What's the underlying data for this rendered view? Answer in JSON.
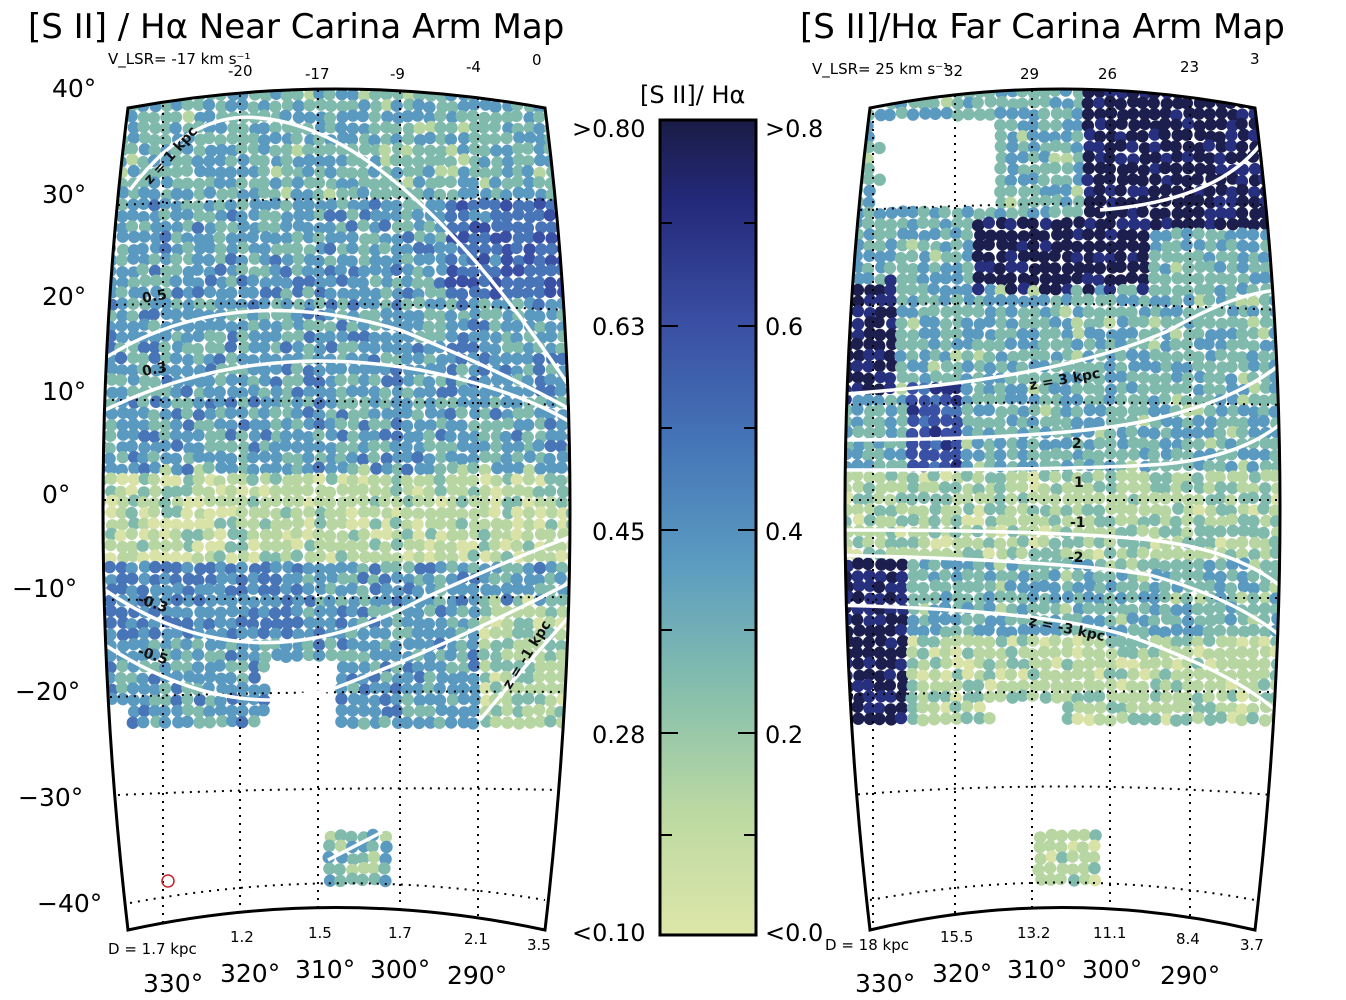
{
  "chart_data": [
    {
      "type": "heatmap",
      "title": "[S II] / Hα Near Carina Arm Map",
      "projection": "all-sky map, Galactic coordinates",
      "longitude_ticks": [
        "330°",
        "320°",
        "310°",
        "300°",
        "290°"
      ],
      "latitude_ticks": [
        "40°",
        "30°",
        "20°",
        "10°",
        "0°",
        "−10°",
        "−20°",
        "−30°",
        "−40°"
      ],
      "velocity_ticks": [
        "V_LSR= -17 km s⁻¹",
        "-20",
        "-17",
        "-9",
        "-4",
        "0"
      ],
      "distance_ticks": [
        "D = 1.7 kpc",
        "1.2",
        "1.5",
        "1.7",
        "2.1",
        "3.5"
      ],
      "height_contours": [
        "z = 1 kpc",
        "0.5",
        "0.3",
        "-0.3",
        "-0.5",
        "z = -1 kpc"
      ],
      "value_range": [
        0.1,
        0.8
      ],
      "coverage": "latitude −23° to +40°, longitude 330° to 283°; small patch near b = −37° to −40°, l = 305°–310°"
    },
    {
      "type": "heatmap",
      "title": "[S II]/Hα Far Carina Arm Map",
      "projection": "all-sky map, Galactic coordinates",
      "longitude_ticks": [
        "330°",
        "320°",
        "310°",
        "300°",
        "290°"
      ],
      "velocity_ticks": [
        "V_LSR= 25 km s⁻¹",
        "32",
        "29",
        "26",
        "23",
        "3"
      ],
      "distance_ticks": [
        "D = 18 kpc",
        "15.5",
        "13.2",
        "11.1",
        "8.4",
        "3.7"
      ],
      "height_contours": [
        "z = 3 kpc",
        "2",
        "1",
        "-1",
        "-2",
        "z = -3 kpc"
      ],
      "value_range": [
        0.0,
        0.8
      ],
      "coverage": "latitude −23° to +40°, longitude 330° to 283°; small patch near b = −37° to −40°, l = 305°–310°"
    }
  ],
  "colorbar": {
    "label": "[S II]/ Hα",
    "left_ticks": [
      ">0.80",
      "0.63",
      "0.45",
      "0.28",
      "<0.10"
    ],
    "right_ticks": [
      ">0.8",
      "0.6",
      "0.4",
      "0.2",
      "<0.0"
    ],
    "colors": [
      "#d9e3a8",
      "#b7d6a2",
      "#7fbaad",
      "#5a9ac0",
      "#4775b8",
      "#3a50a4",
      "#27307f",
      "#1c1e4e"
    ]
  }
}
